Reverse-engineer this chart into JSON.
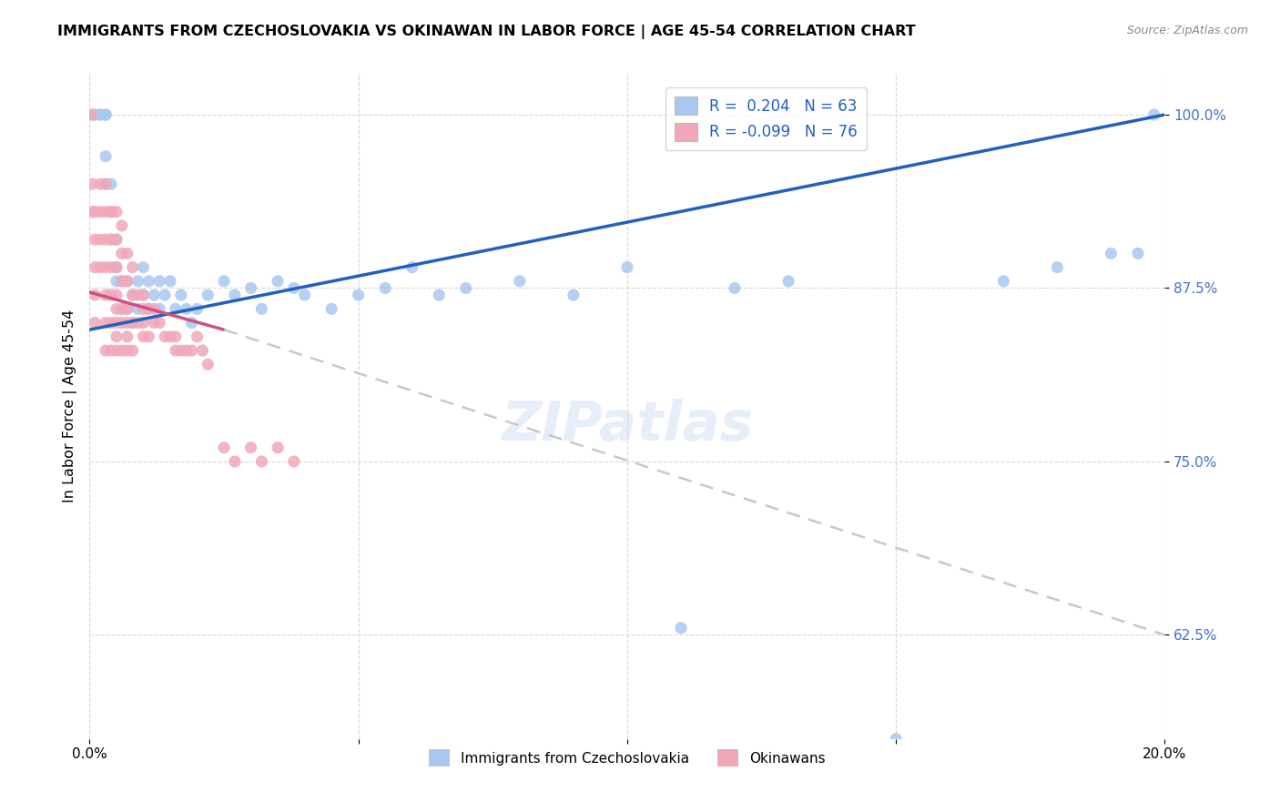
{
  "title": "IMMIGRANTS FROM CZECHOSLOVAKIA VS OKINAWAN IN LABOR FORCE | AGE 45-54 CORRELATION CHART",
  "source": "Source: ZipAtlas.com",
  "ylabel": "In Labor Force | Age 45-54",
  "r_czech": 0.204,
  "n_czech": 63,
  "r_okinawan": -0.099,
  "n_okinawan": 76,
  "xmin": 0.0,
  "xmax": 0.2,
  "ymin": 0.55,
  "ymax": 1.03,
  "yticks": [
    0.625,
    0.75,
    0.875,
    1.0
  ],
  "ytick_labels": [
    "62.5%",
    "75.0%",
    "87.5%",
    "100.0%"
  ],
  "xticks": [
    0.0,
    0.05,
    0.1,
    0.15,
    0.2
  ],
  "xtick_labels": [
    "0.0%",
    "",
    "",
    "",
    "20.0%"
  ],
  "color_czech": "#a8c8f0",
  "color_okinawan": "#f0a8b8",
  "trendline_czech_color": "#2060c0",
  "trendline_okinawan_solid_color": "#d05080",
  "trendline_okinawan_dashed_color": "#c8c8c8",
  "watermark": "ZIPatlas",
  "czech_trendline": [
    0.0,
    0.845,
    0.2,
    1.0
  ],
  "okinawan_trendline_solid": [
    0.0,
    0.872,
    0.025,
    0.845
  ],
  "okinawan_trendline_dashed": [
    0.025,
    0.845,
    0.2,
    0.625
  ],
  "czech_x": [
    0.0005,
    0.001,
    0.001,
    0.002,
    0.002,
    0.003,
    0.003,
    0.003,
    0.003,
    0.004,
    0.004,
    0.004,
    0.005,
    0.005,
    0.005,
    0.006,
    0.006,
    0.007,
    0.007,
    0.008,
    0.008,
    0.009,
    0.009,
    0.01,
    0.01,
    0.011,
    0.011,
    0.012,
    0.013,
    0.013,
    0.014,
    0.015,
    0.016,
    0.017,
    0.018,
    0.019,
    0.02,
    0.022,
    0.025,
    0.027,
    0.03,
    0.032,
    0.035,
    0.038,
    0.04,
    0.045,
    0.05,
    0.055,
    0.06,
    0.065,
    0.07,
    0.08,
    0.09,
    0.1,
    0.11,
    0.12,
    0.13,
    0.15,
    0.17,
    0.18,
    0.19,
    0.195,
    0.198
  ],
  "czech_y": [
    1.0,
    1.0,
    1.0,
    1.0,
    1.0,
    1.0,
    1.0,
    0.97,
    0.95,
    0.95,
    0.93,
    0.91,
    0.91,
    0.89,
    0.88,
    0.88,
    0.86,
    0.88,
    0.86,
    0.87,
    0.85,
    0.88,
    0.86,
    0.89,
    0.87,
    0.88,
    0.86,
    0.87,
    0.88,
    0.86,
    0.87,
    0.88,
    0.86,
    0.87,
    0.86,
    0.85,
    0.86,
    0.87,
    0.88,
    0.87,
    0.875,
    0.86,
    0.88,
    0.875,
    0.87,
    0.86,
    0.87,
    0.875,
    0.89,
    0.87,
    0.875,
    0.88,
    0.87,
    0.89,
    0.63,
    0.875,
    0.88,
    0.55,
    0.88,
    0.89,
    0.9,
    0.9,
    1.0
  ],
  "okinawan_x": [
    0.0003,
    0.0005,
    0.0005,
    0.001,
    0.001,
    0.001,
    0.001,
    0.001,
    0.002,
    0.002,
    0.002,
    0.002,
    0.003,
    0.003,
    0.003,
    0.003,
    0.003,
    0.003,
    0.003,
    0.004,
    0.004,
    0.004,
    0.004,
    0.004,
    0.004,
    0.005,
    0.005,
    0.005,
    0.005,
    0.005,
    0.005,
    0.005,
    0.005,
    0.006,
    0.006,
    0.006,
    0.006,
    0.006,
    0.006,
    0.007,
    0.007,
    0.007,
    0.007,
    0.007,
    0.007,
    0.008,
    0.008,
    0.008,
    0.008,
    0.009,
    0.009,
    0.01,
    0.01,
    0.01,
    0.01,
    0.011,
    0.011,
    0.012,
    0.012,
    0.013,
    0.014,
    0.015,
    0.016,
    0.016,
    0.017,
    0.018,
    0.019,
    0.02,
    0.021,
    0.022,
    0.025,
    0.027,
    0.03,
    0.032,
    0.035,
    0.038
  ],
  "okinawan_y": [
    1.0,
    0.95,
    0.93,
    0.93,
    0.91,
    0.89,
    0.87,
    0.85,
    0.95,
    0.93,
    0.91,
    0.89,
    0.95,
    0.93,
    0.91,
    0.89,
    0.87,
    0.85,
    0.83,
    0.93,
    0.91,
    0.89,
    0.87,
    0.85,
    0.83,
    0.93,
    0.91,
    0.89,
    0.87,
    0.86,
    0.85,
    0.84,
    0.83,
    0.92,
    0.9,
    0.88,
    0.86,
    0.85,
    0.83,
    0.9,
    0.88,
    0.86,
    0.85,
    0.84,
    0.83,
    0.89,
    0.87,
    0.85,
    0.83,
    0.87,
    0.85,
    0.87,
    0.86,
    0.85,
    0.84,
    0.86,
    0.84,
    0.86,
    0.85,
    0.85,
    0.84,
    0.84,
    0.84,
    0.83,
    0.83,
    0.83,
    0.83,
    0.84,
    0.83,
    0.82,
    0.76,
    0.75,
    0.76,
    0.75,
    0.76,
    0.75
  ]
}
